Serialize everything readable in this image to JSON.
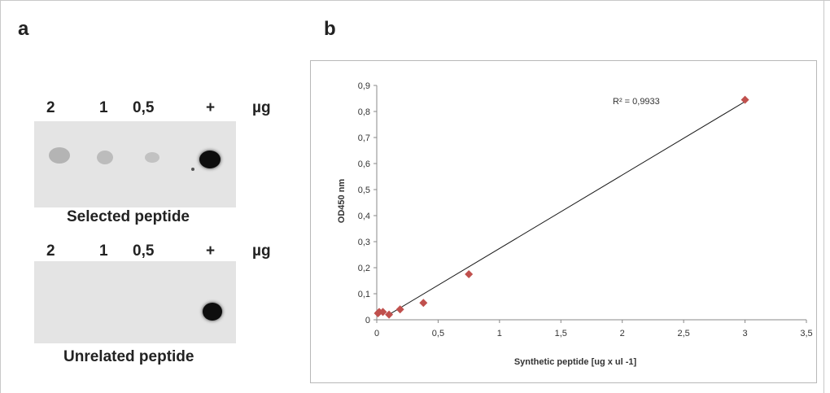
{
  "panel_a": {
    "letter": "a",
    "blot_top": {
      "header": [
        "2",
        "1",
        "0,5",
        "+",
        "µg"
      ],
      "caption": "Selected peptide"
    },
    "blot_bottom": {
      "header": [
        "2",
        "1",
        "0,5",
        "+",
        "µg"
      ],
      "caption": "Unrelated peptide"
    }
  },
  "panel_b": {
    "letter": "b"
  },
  "chart_data": {
    "type": "scatter",
    "title": "",
    "xlabel": "Synthetic peptide [ug x ul -1]",
    "ylabel": "OD450 nm",
    "xlim": [
      0,
      3.5
    ],
    "ylim": [
      0,
      0.9
    ],
    "x_ticks": [
      "0",
      "0,5",
      "1",
      "1,5",
      "2",
      "2,5",
      "3",
      "3,5"
    ],
    "y_ticks": [
      "0",
      "0,1",
      "0,2",
      "0,3",
      "0,4",
      "0,5",
      "0,6",
      "0,7",
      "0,8",
      "0,9"
    ],
    "points": [
      {
        "x": 0.01,
        "y": 0.025
      },
      {
        "x": 0.02,
        "y": 0.03
      },
      {
        "x": 0.05,
        "y": 0.03
      },
      {
        "x": 0.1,
        "y": 0.02
      },
      {
        "x": 0.19,
        "y": 0.04
      },
      {
        "x": 0.38,
        "y": 0.065
      },
      {
        "x": 0.75,
        "y": 0.175
      },
      {
        "x": 3.0,
        "y": 0.845
      }
    ],
    "trendline": {
      "x": [
        0.1,
        3.0
      ],
      "y": [
        0.02,
        0.838
      ]
    },
    "annotation": "R² = 0,9933",
    "marker_color": "#c0504d",
    "grid": false
  }
}
